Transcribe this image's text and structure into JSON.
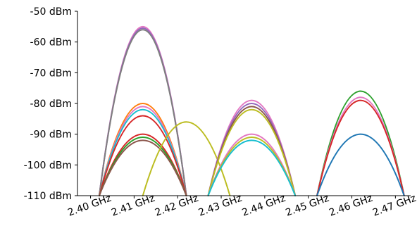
{
  "chart_data": {
    "type": "line",
    "title": "",
    "xlabel": "",
    "ylabel": "",
    "xlim": [
      2.397,
      2.4735
    ],
    "ylim": [
      -110,
      -50
    ],
    "x_ticks": [
      2.4,
      2.41,
      2.42,
      2.43,
      2.44,
      2.45,
      2.46,
      2.47
    ],
    "x_tick_labels": [
      "2.40 GHz",
      "2.41 GHz",
      "2.42 GHz",
      "2.43 GHz",
      "2.44 GHz",
      "2.45 GHz",
      "2.46 GHz",
      "2.47 GHz"
    ],
    "y_ticks": [
      -50,
      -60,
      -70,
      -80,
      -90,
      -100,
      -110
    ],
    "y_tick_labels": [
      "-50 dBm",
      "-60 dBm",
      "-70 dBm",
      "-80 dBm",
      "-90 dBm",
      "-100 dBm",
      "-110 dBm"
    ],
    "grid": false,
    "series": [
      {
        "center": 2.412,
        "peak": -55,
        "color": "#e377c2"
      },
      {
        "center": 2.412,
        "peak": -55.5,
        "color": "#9467bd"
      },
      {
        "center": 2.412,
        "peak": -56,
        "color": "#7f7f7f"
      },
      {
        "center": 2.412,
        "peak": -80,
        "color": "#ff7f0e"
      },
      {
        "center": 2.412,
        "peak": -81,
        "color": "#e377c2"
      },
      {
        "center": 2.412,
        "peak": -82,
        "color": "#17becf"
      },
      {
        "center": 2.412,
        "peak": -84,
        "color": "#d62728"
      },
      {
        "center": 2.412,
        "peak": -90,
        "color": "#d62728"
      },
      {
        "center": 2.412,
        "peak": -91,
        "color": "#2ca02c"
      },
      {
        "center": 2.412,
        "peak": -92,
        "color": "#8c564b"
      },
      {
        "center": 2.422,
        "peak": -86,
        "color": "#bcbd22"
      },
      {
        "center": 2.437,
        "peak": -79,
        "color": "#e377c2"
      },
      {
        "center": 2.437,
        "peak": -80,
        "color": "#9467bd"
      },
      {
        "center": 2.437,
        "peak": -81,
        "color": "#8c564b"
      },
      {
        "center": 2.437,
        "peak": -82,
        "color": "#bcbd22"
      },
      {
        "center": 2.437,
        "peak": -90,
        "color": "#e377c2"
      },
      {
        "center": 2.437,
        "peak": -91,
        "color": "#bcbd22"
      },
      {
        "center": 2.437,
        "peak": -92,
        "color": "#17becf"
      },
      {
        "center": 2.462,
        "peak": -76,
        "color": "#2ca02c"
      },
      {
        "center": 2.462,
        "peak": -78,
        "color": "#e377c2"
      },
      {
        "center": 2.462,
        "peak": -79,
        "color": "#d62728"
      },
      {
        "center": 2.462,
        "peak": -90,
        "color": "#1f77b4"
      }
    ]
  }
}
